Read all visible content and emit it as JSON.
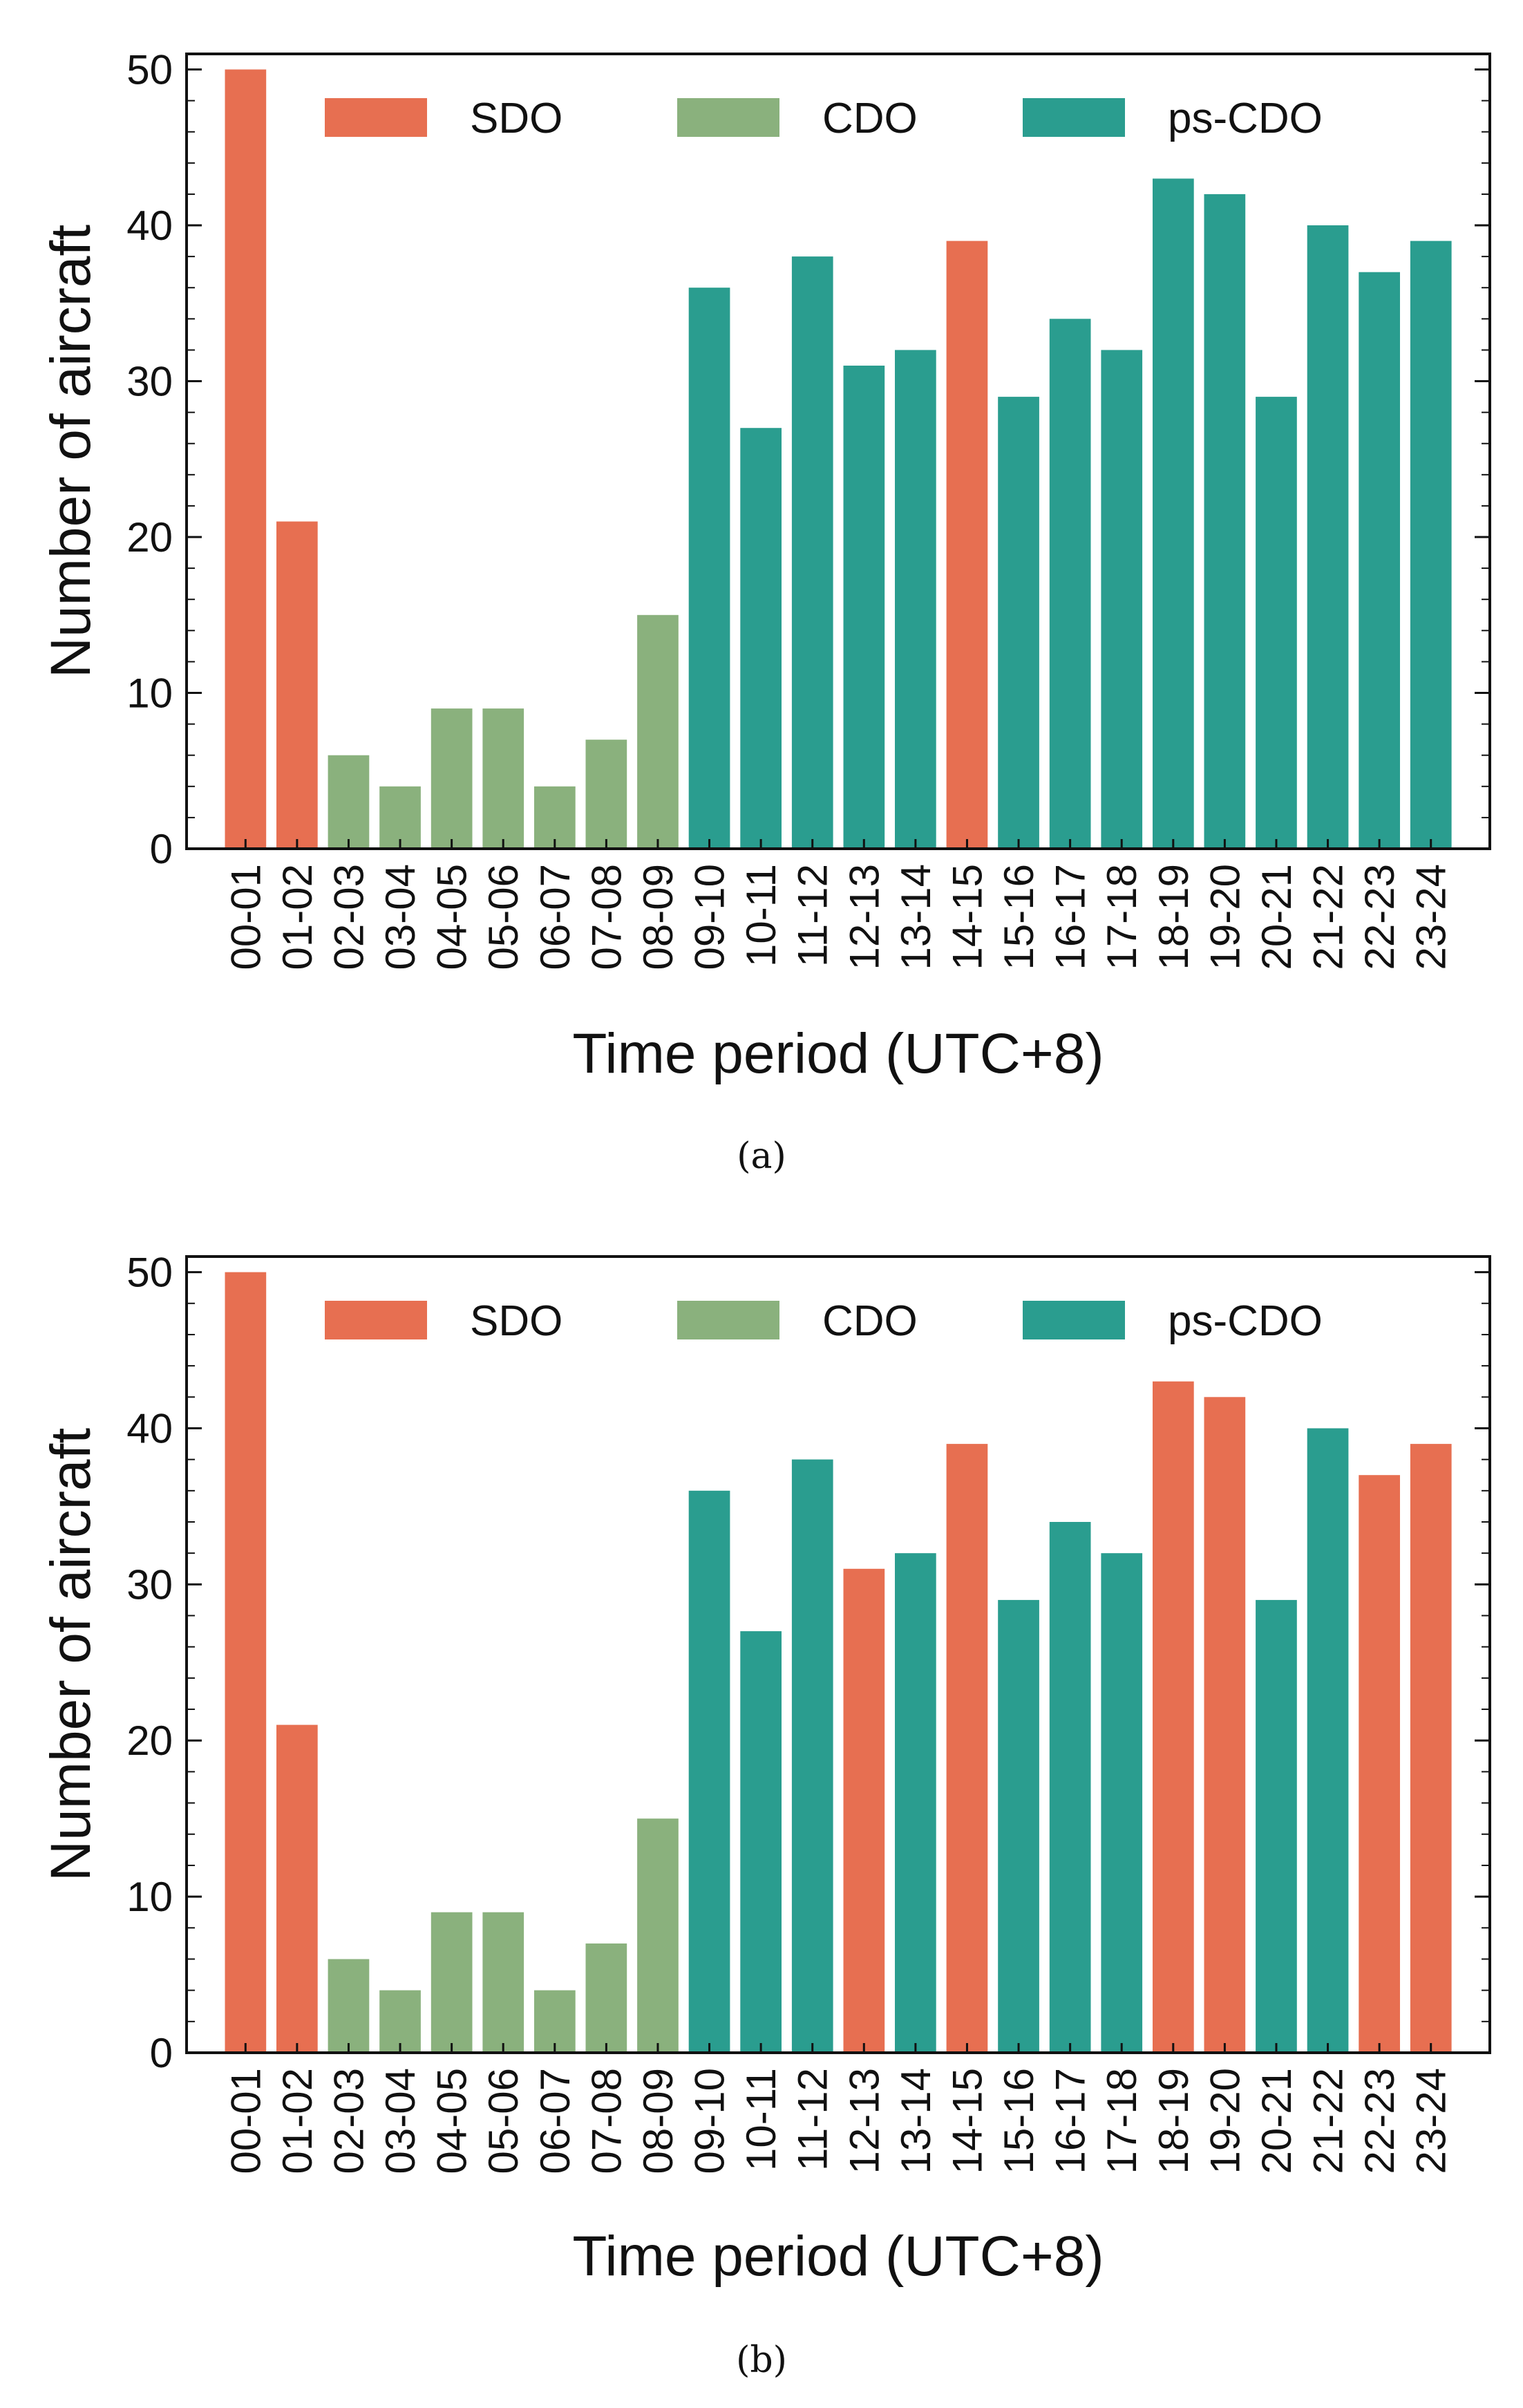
{
  "figure": {
    "captions": [
      "(a)",
      "(b)"
    ]
  },
  "legend_colors": {
    "SDO": "#E76F51",
    "CDO": "#8AB17D",
    "ps-CDO": "#2A9D8F"
  },
  "chart_data": [
    {
      "type": "bar",
      "panel": "(a)",
      "title": "",
      "xlabel": "Time period (UTC+8)",
      "ylabel": "Number of aircraft",
      "ylim": [
        0,
        51
      ],
      "yticks": [
        0,
        10,
        20,
        30,
        40,
        50
      ],
      "legend": [
        "SDO",
        "CDO",
        "ps-CDO"
      ],
      "legend_position": "top",
      "categories": [
        "00-01",
        "01-02",
        "02-03",
        "03-04",
        "04-05",
        "05-06",
        "06-07",
        "07-08",
        "08-09",
        "09-10",
        "10-11",
        "11-12",
        "12-13",
        "13-14",
        "14-15",
        "15-16",
        "16-17",
        "17-18",
        "18-19",
        "19-20",
        "20-21",
        "21-22",
        "22-23",
        "23-24"
      ],
      "values": [
        50,
        21,
        6,
        4,
        9,
        9,
        4,
        7,
        15,
        36,
        27,
        38,
        31,
        32,
        39,
        29,
        34,
        32,
        43,
        42,
        29,
        40,
        37,
        39
      ],
      "groups": [
        "SDO",
        "SDO",
        "CDO",
        "CDO",
        "CDO",
        "CDO",
        "CDO",
        "CDO",
        "CDO",
        "ps-CDO",
        "ps-CDO",
        "ps-CDO",
        "ps-CDO",
        "ps-CDO",
        "SDO",
        "ps-CDO",
        "ps-CDO",
        "ps-CDO",
        "ps-CDO",
        "ps-CDO",
        "ps-CDO",
        "ps-CDO",
        "ps-CDO",
        "ps-CDO"
      ]
    },
    {
      "type": "bar",
      "panel": "(b)",
      "title": "",
      "xlabel": "Time period (UTC+8)",
      "ylabel": "Number of aircraft",
      "ylim": [
        0,
        51
      ],
      "yticks": [
        0,
        10,
        20,
        30,
        40,
        50
      ],
      "legend": [
        "SDO",
        "CDO",
        "ps-CDO"
      ],
      "legend_position": "top",
      "categories": [
        "00-01",
        "01-02",
        "02-03",
        "03-04",
        "04-05",
        "05-06",
        "06-07",
        "07-08",
        "08-09",
        "09-10",
        "10-11",
        "11-12",
        "12-13",
        "13-14",
        "14-15",
        "15-16",
        "16-17",
        "17-18",
        "18-19",
        "19-20",
        "20-21",
        "21-22",
        "22-23",
        "23-24"
      ],
      "values": [
        50,
        21,
        6,
        4,
        9,
        9,
        4,
        7,
        15,
        36,
        27,
        38,
        31,
        32,
        39,
        29,
        34,
        32,
        43,
        42,
        29,
        40,
        37,
        39
      ],
      "groups": [
        "SDO",
        "SDO",
        "CDO",
        "CDO",
        "CDO",
        "CDO",
        "CDO",
        "CDO",
        "CDO",
        "ps-CDO",
        "ps-CDO",
        "ps-CDO",
        "SDO",
        "ps-CDO",
        "SDO",
        "ps-CDO",
        "ps-CDO",
        "ps-CDO",
        "SDO",
        "SDO",
        "ps-CDO",
        "ps-CDO",
        "SDO",
        "SDO"
      ]
    }
  ]
}
